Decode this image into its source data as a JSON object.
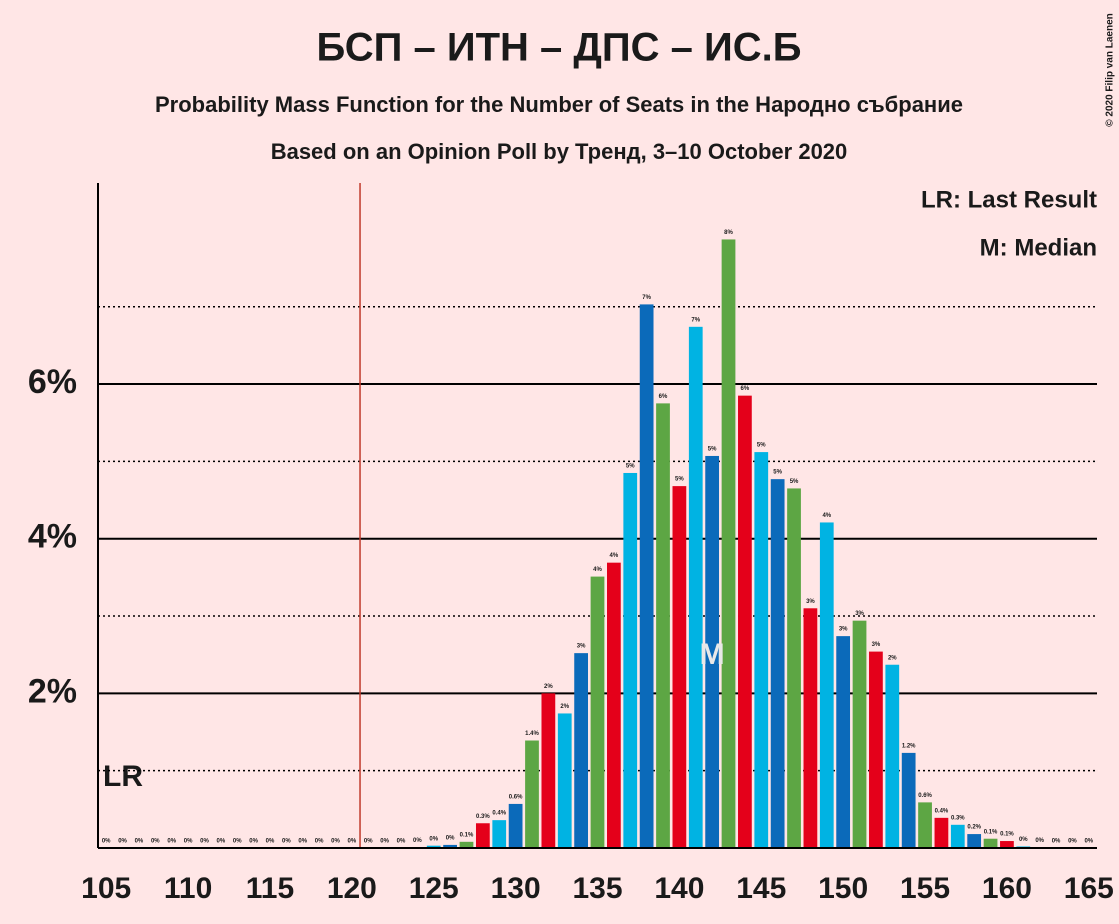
{
  "chart_data": {
    "type": "bar",
    "title": "БСП – ИТН – ДПС – ИС.Б",
    "subtitle": "Probability Mass Function for the Number of Seats in the Народно събрание",
    "subtitle2": "Based on an Opinion Poll by Тренд, 3–10 October 2020",
    "copyright": "© 2020 Filip van Laenen",
    "legend": [
      "LR: Last Result",
      "M: Median"
    ],
    "last_result": 121,
    "last_result_label": "LR",
    "median": 142,
    "median_label": "M",
    "x": [
      105,
      106,
      107,
      108,
      109,
      110,
      111,
      112,
      113,
      114,
      115,
      116,
      117,
      118,
      119,
      120,
      121,
      122,
      123,
      124,
      125,
      126,
      127,
      128,
      129,
      130,
      131,
      132,
      133,
      134,
      135,
      136,
      137,
      138,
      139,
      140,
      141,
      142,
      143,
      144,
      145,
      146,
      147,
      148,
      149,
      150,
      151,
      152,
      153,
      154,
      155,
      156,
      157,
      158,
      159,
      160,
      161,
      162,
      163,
      164,
      165
    ],
    "values": [
      0,
      0,
      0,
      0,
      0,
      0,
      0,
      0,
      0,
      0,
      0,
      0,
      0,
      0,
      0,
      0,
      0,
      0,
      0,
      0.01,
      0.03,
      0.04,
      0.08,
      0.32,
      0.36,
      0.57,
      1.39,
      2.0,
      1.74,
      2.52,
      3.51,
      3.69,
      4.85,
      7.03,
      5.75,
      4.68,
      6.74,
      5.07,
      7.87,
      5.85,
      5.12,
      4.77,
      4.65,
      3.1,
      4.21,
      2.74,
      2.94,
      2.54,
      2.37,
      1.23,
      0.59,
      0.39,
      0.3,
      0.18,
      0.12,
      0.09,
      0.02,
      0.01,
      0,
      0,
      0
    ],
    "value_labels": [
      "0%",
      "0%",
      "0%",
      "0%",
      "0%",
      "0%",
      "0%",
      "0%",
      "0%",
      "0%",
      "0%",
      "0%",
      "0%",
      "0%",
      "0%",
      "0%",
      "0%",
      "0%",
      "0%",
      "0%",
      "0%",
      "0%",
      "0.1%",
      "0.3%",
      "0.4%",
      "0.6%",
      "1.4%",
      "2%",
      "2%",
      "3%",
      "4%",
      "4%",
      "5%",
      "7%",
      "6%",
      "5%",
      "7%",
      "5%",
      "8%",
      "6%",
      "5%",
      "5%",
      "5%",
      "3%",
      "4%",
      "3%",
      "3%",
      "3%",
      "2%",
      "1.2%",
      "0.6%",
      "0.4%",
      "0.3%",
      "0.2%",
      "0.1%",
      "0.1%",
      "0%",
      "0%",
      "0%",
      "0%",
      "0%"
    ],
    "colors": [
      "#00b3e3",
      "#0b6aba",
      "#5da644",
      "#e4001a"
    ],
    "xlim": [
      104.5,
      165.5
    ],
    "xticks": [
      105,
      110,
      115,
      120,
      125,
      130,
      135,
      140,
      145,
      150,
      155,
      160,
      165
    ],
    "ylim": [
      0,
      8.6
    ],
    "yticks": [
      {
        "value": 2,
        "label": "2%"
      },
      {
        "value": 4,
        "label": "4%"
      },
      {
        "value": 6,
        "label": "6%"
      }
    ],
    "minor_grid": [
      1,
      3,
      5,
      7
    ],
    "last_result_color": "#c0392b"
  }
}
